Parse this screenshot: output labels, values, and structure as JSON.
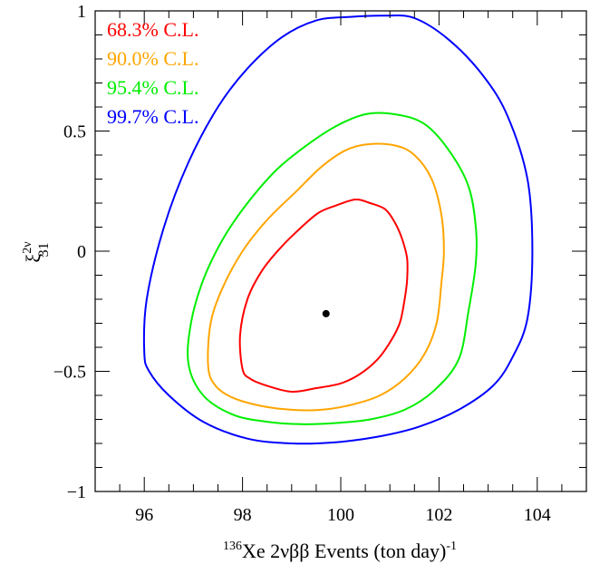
{
  "chart_data": {
    "type": "contour",
    "xlabel": {
      "sup": "136",
      "text": "Xe 2νββ Events (ton day)",
      "sup_after": "-1"
    },
    "ylabel": {
      "base": "ξ",
      "sup": "2ν",
      "sub": "31"
    },
    "xlim": [
      95,
      105
    ],
    "ylim": [
      -1,
      1
    ],
    "x_ticks": [
      96,
      98,
      100,
      102,
      104
    ],
    "x_tick_labels": [
      "96",
      "98",
      "100",
      "102",
      "104"
    ],
    "y_ticks": [
      -1,
      -0.5,
      0,
      0.5,
      1
    ],
    "y_tick_labels": [
      "−1",
      "−0.5",
      "0",
      "0.5",
      "1"
    ],
    "best_fit": {
      "x": 99.7,
      "y": -0.26
    },
    "legend_position": "top-left",
    "series": [
      {
        "name": "68.3% C.L.",
        "color": "#ff0000",
        "points": [
          [
            98.0,
            -0.49
          ],
          [
            97.95,
            -0.35
          ],
          [
            98.1,
            -0.2
          ],
          [
            98.4,
            -0.08
          ],
          [
            98.8,
            0.02
          ],
          [
            99.2,
            0.1
          ],
          [
            99.55,
            0.16
          ],
          [
            99.9,
            0.19
          ],
          [
            100.3,
            0.215
          ],
          [
            100.6,
            0.2
          ],
          [
            100.9,
            0.175
          ],
          [
            101.1,
            0.12
          ],
          [
            101.25,
            0.05
          ],
          [
            101.35,
            -0.03
          ],
          [
            101.35,
            -0.12
          ],
          [
            101.3,
            -0.2
          ],
          [
            101.2,
            -0.3
          ],
          [
            101.0,
            -0.38
          ],
          [
            100.75,
            -0.45
          ],
          [
            100.4,
            -0.51
          ],
          [
            100.0,
            -0.55
          ],
          [
            99.5,
            -0.57
          ],
          [
            99.0,
            -0.585
          ],
          [
            98.5,
            -0.56
          ],
          [
            98.15,
            -0.53
          ]
        ]
      },
      {
        "name": "90.0% C.L.",
        "color": "#ffa500",
        "points": [
          [
            97.3,
            -0.48
          ],
          [
            97.35,
            -0.3
          ],
          [
            97.6,
            -0.15
          ],
          [
            98.0,
            0.0
          ],
          [
            98.5,
            0.13
          ],
          [
            99.1,
            0.25
          ],
          [
            99.6,
            0.35
          ],
          [
            100.1,
            0.42
          ],
          [
            100.55,
            0.445
          ],
          [
            101.1,
            0.44
          ],
          [
            101.5,
            0.4
          ],
          [
            101.85,
            0.3
          ],
          [
            102.05,
            0.15
          ],
          [
            102.1,
            0.0
          ],
          [
            102.05,
            -0.13
          ],
          [
            101.95,
            -0.3
          ],
          [
            101.7,
            -0.43
          ],
          [
            101.3,
            -0.53
          ],
          [
            100.8,
            -0.6
          ],
          [
            100.2,
            -0.64
          ],
          [
            99.6,
            -0.66
          ],
          [
            99.0,
            -0.66
          ],
          [
            98.4,
            -0.645
          ],
          [
            97.8,
            -0.61
          ],
          [
            97.45,
            -0.56
          ]
        ]
      },
      {
        "name": "95.4% C.L.",
        "color": "#00ee00",
        "points": [
          [
            96.9,
            -0.47
          ],
          [
            96.95,
            -0.3
          ],
          [
            97.2,
            -0.12
          ],
          [
            97.6,
            0.05
          ],
          [
            98.1,
            0.2
          ],
          [
            98.7,
            0.34
          ],
          [
            99.3,
            0.44
          ],
          [
            99.9,
            0.52
          ],
          [
            100.5,
            0.57
          ],
          [
            101.1,
            0.57
          ],
          [
            101.7,
            0.53
          ],
          [
            102.2,
            0.42
          ],
          [
            102.6,
            0.27
          ],
          [
            102.75,
            0.1
          ],
          [
            102.75,
            -0.05
          ],
          [
            102.6,
            -0.25
          ],
          [
            102.4,
            -0.45
          ],
          [
            101.9,
            -0.58
          ],
          [
            101.3,
            -0.66
          ],
          [
            100.6,
            -0.7
          ],
          [
            99.9,
            -0.715
          ],
          [
            99.2,
            -0.72
          ],
          [
            98.5,
            -0.71
          ],
          [
            97.8,
            -0.68
          ],
          [
            97.2,
            -0.6
          ]
        ]
      },
      {
        "name": "99.7% C.L.",
        "color": "#0000ff",
        "points": [
          [
            96.0,
            -0.42
          ],
          [
            96.05,
            -0.2
          ],
          [
            96.4,
            0.1
          ],
          [
            96.9,
            0.37
          ],
          [
            97.5,
            0.6
          ],
          [
            98.1,
            0.76
          ],
          [
            98.8,
            0.89
          ],
          [
            99.5,
            0.96
          ],
          [
            100.2,
            0.975
          ],
          [
            100.9,
            0.98
          ],
          [
            101.5,
            0.97
          ],
          [
            102.2,
            0.88
          ],
          [
            102.9,
            0.73
          ],
          [
            103.4,
            0.56
          ],
          [
            103.8,
            0.3
          ],
          [
            103.9,
            0.0
          ],
          [
            103.8,
            -0.28
          ],
          [
            103.5,
            -0.44
          ],
          [
            103.1,
            -0.56
          ],
          [
            102.4,
            -0.66
          ],
          [
            101.6,
            -0.73
          ],
          [
            100.8,
            -0.77
          ],
          [
            99.9,
            -0.795
          ],
          [
            99.0,
            -0.8
          ],
          [
            98.1,
            -0.78
          ],
          [
            97.2,
            -0.71
          ],
          [
            96.5,
            -0.6
          ],
          [
            96.1,
            -0.5
          ]
        ]
      }
    ]
  }
}
